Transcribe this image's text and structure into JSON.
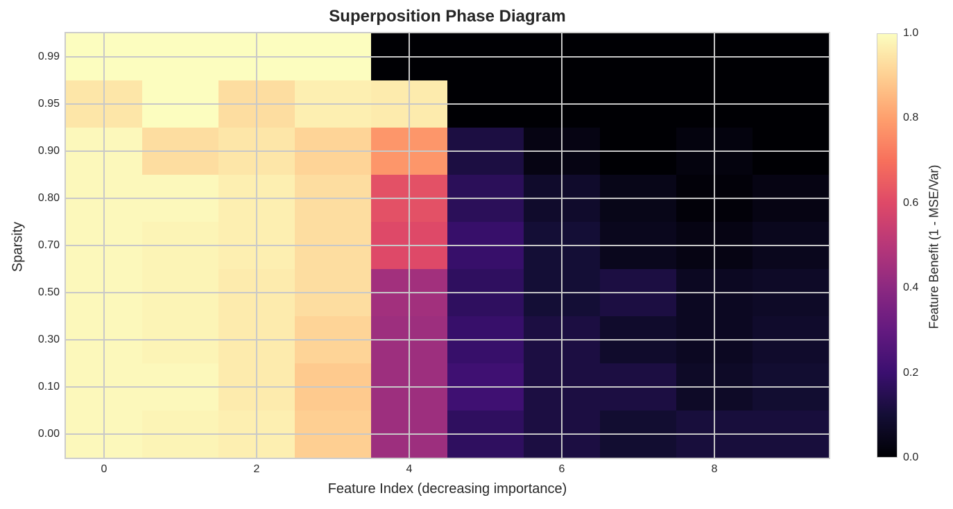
{
  "chart_data": {
    "type": "heatmap",
    "title": "Superposition Phase Diagram",
    "xlabel": "Feature Index (decreasing importance)",
    "ylabel": "Sparsity",
    "colorbar_label": "Feature Benefit (1 - MSE/Var)",
    "colormap": "magma",
    "vmin": 0.0,
    "vmax": 1.0,
    "x": [
      0,
      1,
      2,
      3,
      4,
      5,
      6,
      7,
      8,
      9
    ],
    "x_ticks": [
      "0",
      "2",
      "4",
      "6",
      "8"
    ],
    "y": [
      "0.99",
      "0.95",
      "0.90",
      "0.80",
      "0.70",
      "0.50",
      "0.30",
      "0.10",
      "0.00"
    ],
    "colorbar_ticks": [
      "1.0",
      "0.8",
      "0.6",
      "0.4",
      "0.2",
      "0.0"
    ],
    "grid": true,
    "values": [
      [
        1.0,
        1.0,
        1.0,
        1.0,
        0.0,
        0.0,
        0.0,
        0.0,
        0.0,
        0.0
      ],
      [
        0.95,
        1.0,
        0.93,
        0.97,
        0.96,
        0.0,
        0.0,
        0.0,
        0.0,
        0.0
      ],
      [
        0.99,
        0.93,
        0.95,
        0.91,
        0.78,
        0.12,
        0.03,
        0.0,
        0.02,
        0.0
      ],
      [
        0.99,
        0.99,
        0.97,
        0.93,
        0.62,
        0.16,
        0.08,
        0.04,
        0.01,
        0.03
      ],
      [
        0.99,
        0.98,
        0.97,
        0.93,
        0.6,
        0.19,
        0.1,
        0.05,
        0.03,
        0.05
      ],
      [
        0.99,
        0.98,
        0.96,
        0.93,
        0.45,
        0.17,
        0.1,
        0.12,
        0.06,
        0.07
      ],
      [
        0.99,
        0.98,
        0.96,
        0.91,
        0.44,
        0.19,
        0.12,
        0.08,
        0.06,
        0.08
      ],
      [
        0.99,
        0.99,
        0.96,
        0.89,
        0.44,
        0.21,
        0.12,
        0.12,
        0.07,
        0.09
      ],
      [
        0.99,
        0.98,
        0.97,
        0.9,
        0.44,
        0.17,
        0.12,
        0.09,
        0.11,
        0.11
      ]
    ]
  }
}
